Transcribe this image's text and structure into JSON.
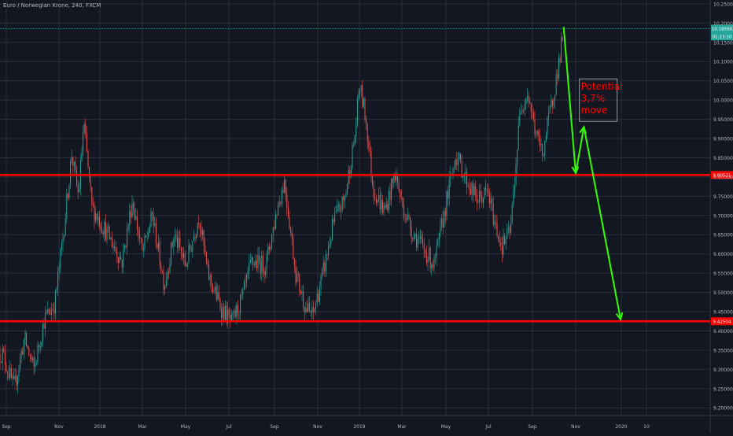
{
  "header": {
    "title": "Euro / Norwegian Krone, 240, FXCM"
  },
  "colors": {
    "background": "#131722",
    "grid": "#2a2e39",
    "axis_text": "#b2b5be",
    "candle_up": "#26a69a",
    "candle_down": "#ef5350",
    "support_line": "#ff0000",
    "arrow": "#33ff00",
    "annotation_text": "#ff0000",
    "price_tag": "#26a69a",
    "level_tag": "#ff0000"
  },
  "chart_data": {
    "type": "candlestick",
    "title": "Euro / Norwegian Krone, 240, FXCM",
    "x_ticks": [
      "Sep",
      "Nov",
      "2018",
      "Mar",
      "May",
      "Jul",
      "Sep",
      "Nov",
      "2019",
      "Mar",
      "May",
      "Jul",
      "Sep",
      "Nov",
      "2020",
      "10"
    ],
    "y_ticks": [
      "10.25000",
      "10.20000",
      "10.15000",
      "10.10000",
      "10.05000",
      "10.00000",
      "9.95000",
      "9.90000",
      "9.85000",
      "9.80000",
      "9.75000",
      "9.70000",
      "9.65000",
      "9.60000",
      "9.55000",
      "9.50000",
      "9.45000",
      "9.40000",
      "9.35000",
      "9.30000",
      "9.25000",
      "9.20000"
    ],
    "ylim": [
      9.18,
      10.26
    ],
    "grid": true,
    "price_path": [
      [
        "2017-08-28",
        9.34
      ],
      [
        "2017-09-10",
        9.25
      ],
      [
        "2017-09-22",
        9.38
      ],
      [
        "2017-10-03",
        9.3
      ],
      [
        "2017-10-15",
        9.43
      ],
      [
        "2017-10-27",
        9.47
      ],
      [
        "2017-11-08",
        9.66
      ],
      [
        "2017-11-20",
        9.86
      ],
      [
        "2017-11-30",
        9.75
      ],
      [
        "2017-12-08",
        9.94
      ],
      [
        "2017-12-20",
        9.72
      ],
      [
        "2017-12-31",
        9.69
      ],
      [
        "2018-01-15",
        9.64
      ],
      [
        "2018-02-01",
        9.58
      ],
      [
        "2018-02-15",
        9.74
      ],
      [
        "2018-03-01",
        9.6
      ],
      [
        "2018-03-15",
        9.7
      ],
      [
        "2018-04-01",
        9.52
      ],
      [
        "2018-04-15",
        9.65
      ],
      [
        "2018-05-01",
        9.57
      ],
      [
        "2018-05-20",
        9.7
      ],
      [
        "2018-06-01",
        9.55
      ],
      [
        "2018-06-20",
        9.46
      ],
      [
        "2018-07-05",
        9.42
      ],
      [
        "2018-07-20",
        9.49
      ],
      [
        "2018-08-01",
        9.58
      ],
      [
        "2018-08-20",
        9.57
      ],
      [
        "2018-09-05",
        9.72
      ],
      [
        "2018-09-15",
        9.79
      ],
      [
        "2018-10-01",
        9.55
      ],
      [
        "2018-10-15",
        9.46
      ],
      [
        "2018-10-25",
        9.44
      ],
      [
        "2018-11-10",
        9.56
      ],
      [
        "2018-11-25",
        9.69
      ],
      [
        "2018-12-10",
        9.74
      ],
      [
        "2018-12-25",
        9.9
      ],
      [
        "2019-01-01",
        10.04
      ],
      [
        "2019-01-10",
        9.95
      ],
      [
        "2019-01-20",
        9.77
      ],
      [
        "2019-02-05",
        9.71
      ],
      [
        "2019-02-20",
        9.81
      ],
      [
        "2019-03-01",
        9.73
      ],
      [
        "2019-03-15",
        9.66
      ],
      [
        "2019-04-01",
        9.61
      ],
      [
        "2019-04-15",
        9.57
      ],
      [
        "2019-05-01",
        9.73
      ],
      [
        "2019-05-15",
        9.86
      ],
      [
        "2019-05-31",
        9.79
      ],
      [
        "2019-06-15",
        9.74
      ],
      [
        "2019-06-30",
        9.76
      ],
      [
        "2019-07-10",
        9.68
      ],
      [
        "2019-07-20",
        9.62
      ],
      [
        "2019-08-01",
        9.66
      ],
      [
        "2019-08-15",
        9.98
      ],
      [
        "2019-08-25",
        10.02
      ],
      [
        "2019-09-05",
        9.92
      ],
      [
        "2019-09-15",
        9.86
      ],
      [
        "2019-09-25",
        9.96
      ],
      [
        "2019-10-05",
        10.06
      ],
      [
        "2019-10-15",
        10.18
      ]
    ],
    "horizontal_levels": [
      {
        "value": 9.80521,
        "label": "9.80521"
      },
      {
        "value": 9.42504,
        "label": "9.42504"
      }
    ],
    "current_price": {
      "value": 10.1856,
      "label": "10.18560",
      "countdown": "01:13:10"
    },
    "annotation": {
      "lines": [
        "Potential",
        "3,7%",
        "move"
      ]
    },
    "projection": [
      [
        "2019-10-15",
        10.19
      ],
      [
        "2019-11-01",
        9.81
      ],
      [
        "2019-11-12",
        9.93
      ],
      [
        "2019-12-31",
        9.43
      ]
    ]
  }
}
